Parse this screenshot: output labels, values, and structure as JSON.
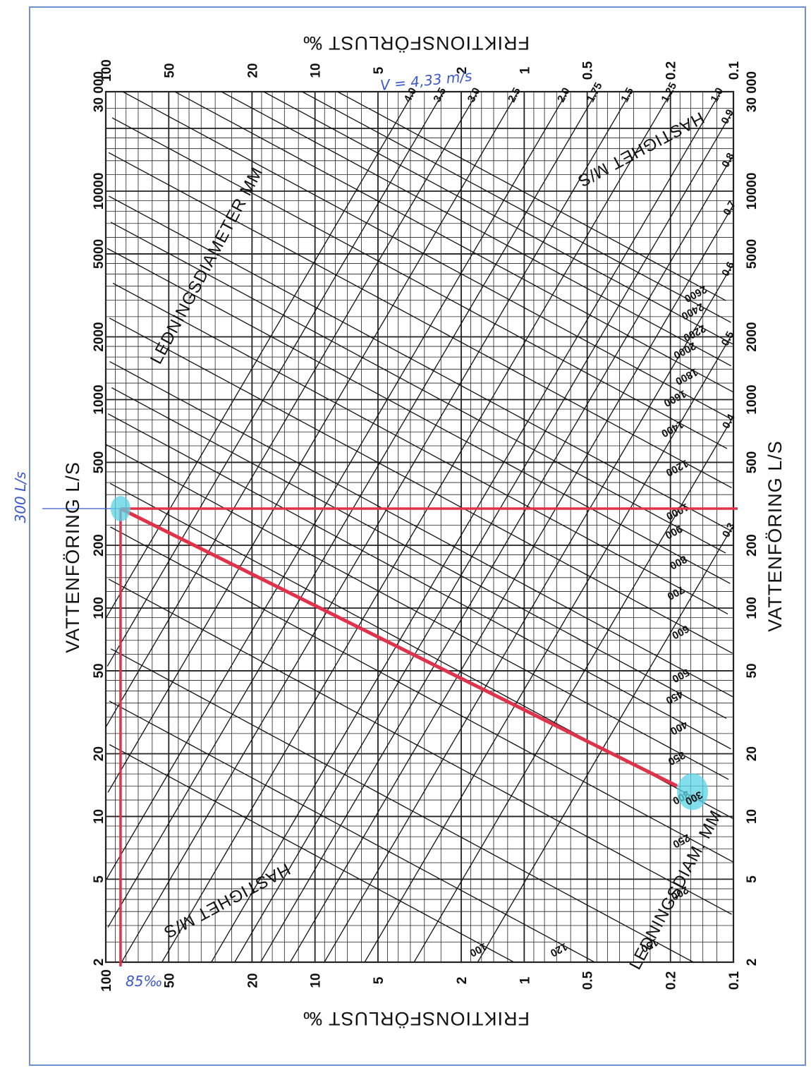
{
  "colors": {
    "grid": "#222222",
    "nomogram": "#111111",
    "highlight_line": "#e0324b",
    "marker": "#5ad3e6",
    "handwriting": "#3b57c9",
    "border": "#6f90d6"
  },
  "chart_data": {
    "type": "line",
    "orientation": "rotated-90",
    "axes": {
      "flow": {
        "title": "VATTENFÖRING L/S",
        "scale": "log",
        "range": [
          2,
          30000
        ],
        "ticks": [
          "2",
          "5",
          "10",
          "20",
          "50",
          "100",
          "200",
          "500",
          "1000",
          "2000",
          "5000",
          "10000",
          "30 000"
        ],
        "tick_values": [
          2,
          5,
          10,
          20,
          50,
          100,
          200,
          500,
          1000,
          2000,
          5000,
          10000,
          30000
        ]
      },
      "friction": {
        "title": "FRIKTIONSFÖRLUST ‰",
        "scale": "log",
        "range": [
          0.1,
          100
        ],
        "ticks": [
          "100",
          "50",
          "20",
          "10",
          "5",
          "2",
          "1",
          "0.5",
          "0.2",
          "0.1"
        ],
        "tick_values": [
          100,
          50,
          20,
          10,
          5,
          2,
          1,
          0.5,
          0.2,
          0.1
        ]
      }
    },
    "families": {
      "diameter_title_top": "LEDNINGSDIAMETER MM",
      "diameter_title_bottom": "LEDNINGSDIAM. MM",
      "velocity_title": "HASTIGHET M/S",
      "diameters_mm": [
        {
          "label": "100",
          "value": 100
        },
        {
          "label": "120",
          "value": 120
        },
        {
          "label": "150",
          "value": 150
        },
        {
          "label": "200",
          "value": 200
        },
        {
          "label": "250",
          "value": 250
        },
        {
          "label": "300",
          "value": 300
        },
        {
          "label": "350",
          "value": 350
        },
        {
          "label": "400",
          "value": 400
        },
        {
          "label": "450",
          "value": 450
        },
        {
          "label": "500",
          "value": 500
        },
        {
          "label": "600",
          "value": 600
        },
        {
          "label": "700",
          "value": 700
        },
        {
          "label": "800",
          "value": 800
        },
        {
          "label": "900",
          "value": 900
        },
        {
          "label": "1000",
          "value": 1000
        },
        {
          "label": "1200",
          "value": 1200
        },
        {
          "label": "1400",
          "value": 1400
        },
        {
          "label": "1600",
          "value": 1600
        },
        {
          "label": "1800",
          "value": 1800
        },
        {
          "label": "2000",
          "value": 2000
        },
        {
          "label": "2200",
          "value": 2200
        },
        {
          "label": "2400",
          "value": 2400
        },
        {
          "label": "2600",
          "value": 2600
        }
      ],
      "velocities_ms": [
        {
          "label": "0.3",
          "value": 0.3
        },
        {
          "label": "0.4",
          "value": 0.4
        },
        {
          "label": "0.5",
          "value": 0.5
        },
        {
          "label": "0.6",
          "value": 0.6
        },
        {
          "label": "0.7",
          "value": 0.7
        },
        {
          "label": "0.8",
          "value": 0.8
        },
        {
          "label": "0.9",
          "value": 0.9
        },
        {
          "label": "1.0",
          "value": 1.0
        },
        {
          "label": "1.25",
          "value": 1.25
        },
        {
          "label": "1.5",
          "value": 1.5
        },
        {
          "label": "1.75",
          "value": 1.75
        },
        {
          "label": "2.0",
          "value": 2.0
        },
        {
          "label": "2.5",
          "value": 2.5
        },
        {
          "label": "3.0",
          "value": 3.0
        },
        {
          "label": "3.5",
          "value": 3.5
        },
        {
          "label": "4.0",
          "value": 4.0
        }
      ]
    },
    "annotations": {
      "flow_mark": {
        "text": "300 L/s",
        "value": 300
      },
      "friction_mark": {
        "text": "85‰",
        "value": 85
      },
      "velocity_mark": {
        "text": "V = 4,33 m/s",
        "value": 4.33
      },
      "diameter_mark": {
        "label": "300",
        "value": 300
      }
    }
  }
}
